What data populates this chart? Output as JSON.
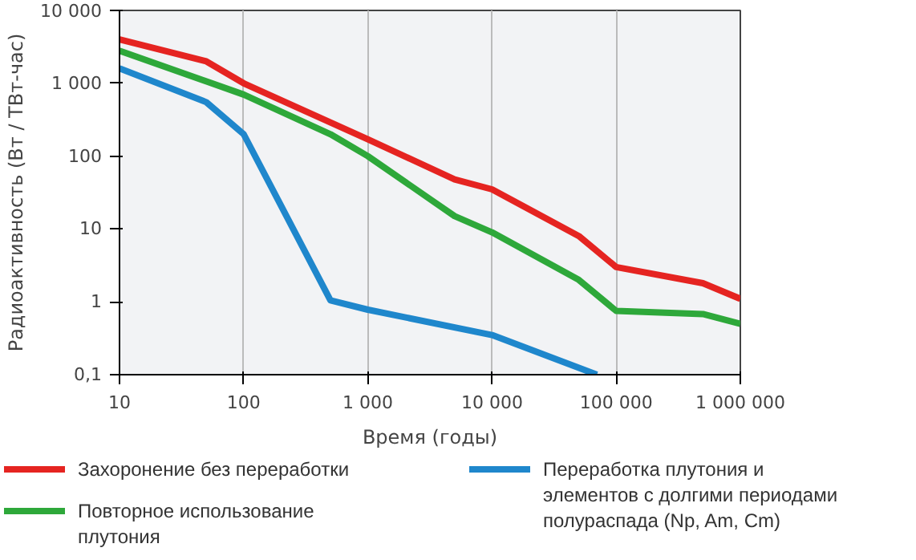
{
  "chart_data": {
    "type": "line",
    "xlabel": "Время (годы)",
    "ylabel": "Радиоактивность (Вт / ТВт-час)",
    "log": "xy",
    "grid": "x",
    "legend": "bottom",
    "line_style": "solid",
    "marker": "none",
    "xlim": [
      10,
      1000000
    ],
    "ylim": [
      0.1,
      10000
    ],
    "xticks": [
      10,
      100,
      {
        "value": 1000,
        "label": "1 000"
      },
      {
        "value": 10000,
        "label": "10 000"
      },
      {
        "value": 100000,
        "label": "100 000"
      },
      {
        "value": 1000000,
        "label": "1 000 000"
      }
    ],
    "yticks": [
      {
        "value": 0.1,
        "label": "0,1"
      },
      1,
      10,
      100,
      {
        "value": 1000,
        "label": "1 000"
      },
      {
        "value": 10000,
        "label": "10 000"
      }
    ],
    "series": [
      {
        "name": "Захоронение без переработки",
        "color": "#e52421",
        "x": [
          10,
          50,
          100,
          1000,
          5000,
          10000,
          50000,
          100000,
          500000,
          1000000
        ],
        "values": [
          4000,
          2000,
          1000,
          170,
          48,
          35,
          8,
          3,
          1.8,
          1.1
        ]
      },
      {
        "name": "Повторное использование плутония",
        "color": "#2ea83a",
        "x": [
          10,
          100,
          500,
          1000,
          5000,
          10000,
          50000,
          100000,
          500000,
          1000000
        ],
        "values": [
          2800,
          700,
          200,
          100,
          15,
          9,
          2,
          0.75,
          0.68,
          0.5
        ]
      },
      {
        "name": "Переработка плутония и элементов с долгими периодами полураспада (Np, Am, Cm)",
        "color": "#1f87cc",
        "x": [
          10,
          50,
          100,
          500,
          1000,
          10000,
          70000
        ],
        "values": [
          1600,
          550,
          200,
          1.05,
          0.78,
          0.35,
          0.1
        ]
      }
    ]
  }
}
